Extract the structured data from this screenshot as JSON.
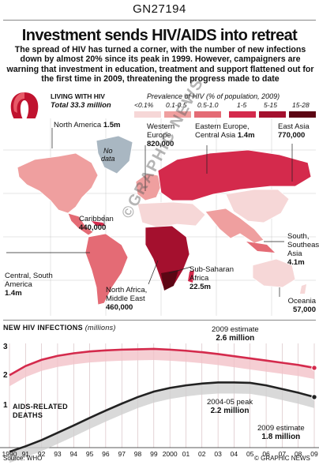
{
  "graphic_code": "GN27194",
  "headline": "Investment sends HIV/AIDS into retreat",
  "intro": "The spread of HIV has turned a corner, with the number of new infections down by almost 20% since its peak in 1999. However, campaigners are warning that investment in education, treatment and support flattened out for the first time in 2009, threatening the progress made to date",
  "living": {
    "title": "LIVING WITH HIV",
    "total": "Total 33.3 million"
  },
  "legend": {
    "title": "Prevalence of HIV (% of population, 2009)",
    "keys": [
      {
        "label": "<0.1%",
        "color": "#f6d7d7"
      },
      {
        "label": "0.1-0.5",
        "color": "#ef9f9f"
      },
      {
        "label": "0.5-1.0",
        "color": "#e46b75"
      },
      {
        "label": "1-5",
        "color": "#d42a4c"
      },
      {
        "label": "5-15",
        "color": "#a4102e"
      },
      {
        "label": "15-28",
        "color": "#5c0614"
      }
    ]
  },
  "map": {
    "no_data": [
      "No",
      "data"
    ],
    "regions": [
      {
        "name": "North America",
        "value": "1.5m"
      },
      {
        "name": "Western Europe",
        "name1": "Western",
        "name2": "Europe",
        "value": "820,000"
      },
      {
        "name1": "Eastern Europe,",
        "name2": "Central Asia",
        "value": "1.4m"
      },
      {
        "name": "East Asia",
        "value": "770,000"
      },
      {
        "name": "Caribbean",
        "value": "440,000"
      },
      {
        "name1": "South,",
        "name2": "Southeast",
        "name3": "Asia",
        "value": "4.1m"
      },
      {
        "name1": "Central, South",
        "name2": "America",
        "value": "1.4m"
      },
      {
        "name1": "North Africa,",
        "name2": "Middle East",
        "value": "460,000"
      },
      {
        "name1": "Sub-Saharan",
        "name2": "Africa",
        "value": "22.5m"
      },
      {
        "name": "Oceania",
        "value": "57,000"
      }
    ]
  },
  "chart_data": {
    "type": "line",
    "title": "NEW HIV INFECTIONS",
    "title_unit": "(millions)",
    "x": [
      "1990",
      "91",
      "92",
      "93",
      "94",
      "95",
      "96",
      "97",
      "98",
      "99",
      "2000",
      "01",
      "02",
      "03",
      "04",
      "05",
      "06",
      "07",
      "08",
      "09"
    ],
    "ylim": [
      0.5,
      3.4
    ],
    "yticks": [
      "3",
      "2",
      "1"
    ],
    "series": [
      {
        "name": "New HIV infections",
        "color": "#d42a4c",
        "values": [
          2.4,
          2.65,
          2.82,
          2.93,
          3.0,
          3.05,
          3.08,
          3.1,
          3.11,
          3.12,
          3.1,
          3.07,
          3.03,
          2.98,
          2.92,
          2.86,
          2.8,
          2.74,
          2.68,
          2.6
        ]
      },
      {
        "name": "AIDS-RELATED DEATHS",
        "label1": "AIDS-RELATED",
        "label2": "DEATHS",
        "color": "#222222",
        "values": [
          0.3,
          0.45,
          0.62,
          0.82,
          1.02,
          1.23,
          1.43,
          1.62,
          1.8,
          1.95,
          2.05,
          2.12,
          2.17,
          2.2,
          2.2,
          2.19,
          2.12,
          2.02,
          1.92,
          1.8
        ]
      }
    ],
    "annotations": [
      {
        "line1": "2009 estimate",
        "value": "2.6 million"
      },
      {
        "line1": "2004-05 peak",
        "value": "2.2 million"
      },
      {
        "line1": "2009 estimate",
        "value": "1.8 million"
      }
    ]
  },
  "footer": {
    "source": "Source: WHO",
    "credit": "© GRAPHIC NEWS"
  },
  "watermark": "©GRAPHIC NEWS"
}
